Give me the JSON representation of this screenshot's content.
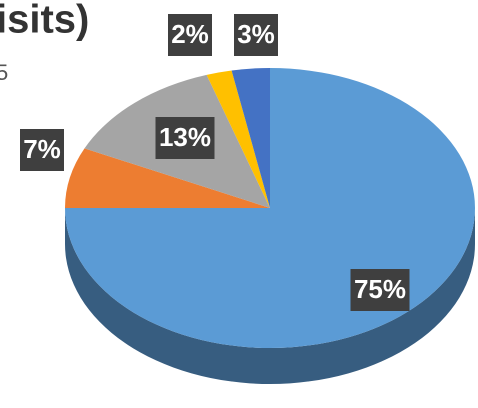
{
  "chart_data": {
    "type": "pie",
    "title": "isits)",
    "subtitle": "5",
    "categories": [
      null,
      null,
      null,
      null,
      null
    ],
    "values": [
      75,
      7,
      13,
      2,
      3
    ],
    "value_labels": [
      "75%",
      "7%",
      "13%",
      "2%",
      "3%"
    ],
    "colors": [
      "#5b9bd5",
      "#ed7d31",
      "#a5a5a5",
      "#ffc000",
      "#4472c4"
    ]
  }
}
